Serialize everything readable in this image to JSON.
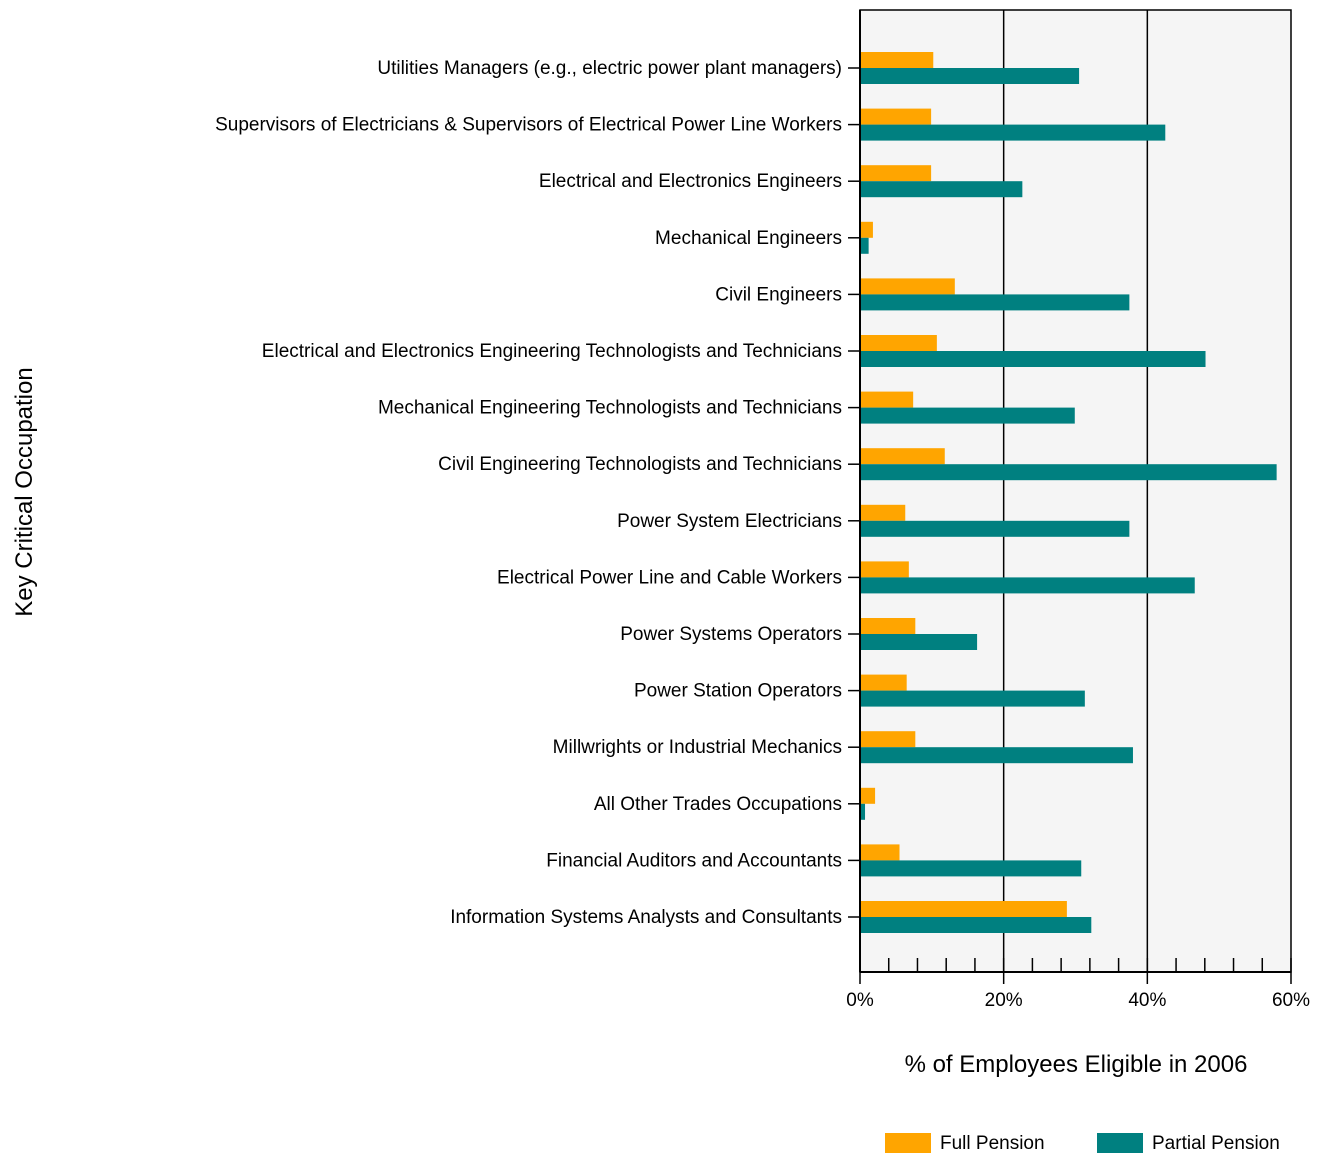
{
  "chart_data": {
    "type": "bar",
    "orientation": "horizontal",
    "xlabel": "% of Employees Eligible in 2006",
    "ylabel": "Key Critical Occupation",
    "xlim": [
      0,
      60
    ],
    "x_ticks": [
      0,
      20,
      40,
      60
    ],
    "x_tick_labels": [
      "0%",
      "20%",
      "40%",
      "60%"
    ],
    "grid": "vertical major lines",
    "legend_position": "bottom-right",
    "categories": [
      "Utilities Managers (e.g., electric power plant managers)",
      "Supervisors of Electricians & Supervisors of Electrical Power Line Workers",
      "Electrical and Electronics Engineers",
      "Mechanical Engineers",
      "Civil Engineers",
      "Electrical and Electronics Engineering Technologists and Technicians",
      "Mechanical Engineering Technologists and Technicians",
      "Civil Engineering Technologists and Technicians",
      "Power System Electricians",
      "Electrical Power Line and Cable Workers",
      "Power Systems Operators",
      "Power Station Operators",
      "Millwrights or Industrial Mechanics",
      "All Other Trades Occupations",
      "Financial Auditors and Accountants",
      "Information Systems Analysts and Consultants"
    ],
    "series": [
      {
        "name": "Full Pension",
        "color": "#ffa500",
        "values": [
          10.2,
          9.9,
          9.9,
          1.8,
          13.2,
          10.7,
          7.4,
          11.8,
          6.3,
          6.8,
          7.7,
          6.5,
          7.7,
          2.1,
          5.5,
          28.8
        ]
      },
      {
        "name": "Partial Pension",
        "color": "#008080",
        "values": [
          30.5,
          42.5,
          22.6,
          1.2,
          37.5,
          48.1,
          29.9,
          58.0,
          37.5,
          46.6,
          16.3,
          31.3,
          38.0,
          0.7,
          30.8,
          32.2
        ]
      }
    ],
    "plot_background": "#f5f5f5"
  }
}
